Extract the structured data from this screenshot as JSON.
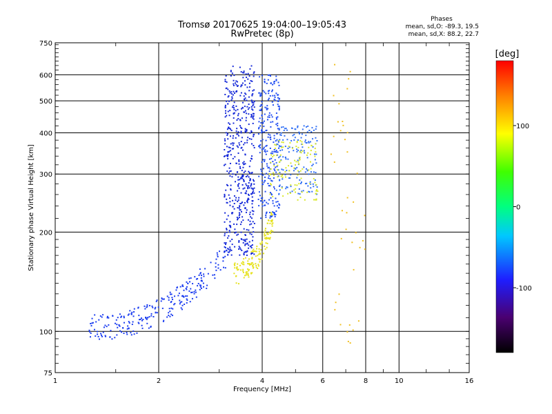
{
  "chart_data": {
    "type": "scatter",
    "title": "Tromsø 20170625 19:04:00–19:05:43",
    "subtitle": "RwPretec (8p)",
    "xlabel": "Frequency [MHz]",
    "ylabel": "Stationary phase Virtual Height [km]",
    "xscale": "log2",
    "yscale": "log",
    "xlim": [
      1,
      16
    ],
    "ylim": [
      75,
      750
    ],
    "grid": true,
    "x_ticks": [
      1,
      2,
      4,
      6,
      8,
      10,
      16
    ],
    "x_tick_labels": [
      "1",
      "2",
      "4",
      "6",
      "8",
      "10",
      "16"
    ],
    "x_gridlines": [
      2,
      4,
      6,
      8,
      10
    ],
    "y_ticks": [
      75,
      100,
      200,
      300,
      400,
      500,
      600,
      750
    ],
    "y_tick_labels": [
      "75",
      "100",
      "200",
      "300",
      "400",
      "500",
      "600",
      "750"
    ],
    "y_gridlines": [
      100,
      200,
      300,
      400,
      500,
      600
    ],
    "phases_box": {
      "title": "Phases",
      "line_o": "mean, sd,O: -89.3, 19.5",
      "line_x": "mean, sd,X:  88.2, 22.7"
    },
    "colorbar": {
      "label": "[deg]",
      "range": [
        -180,
        180
      ],
      "ticks": [
        100,
        0,
        -100
      ],
      "tick_labels": [
        "100",
        "0",
        "-100"
      ]
    },
    "clusters": [
      {
        "name": "low-frequency trace",
        "color": "#1a3cf0",
        "phase_deg": -100,
        "count": 260,
        "f": [
          1.25,
          3.2
        ],
        "h": [
          103,
          175
        ],
        "shape": "curve"
      },
      {
        "name": "F-layer column O",
        "color": "#1428d8",
        "phase_deg": -105,
        "count": 520,
        "f": [
          3.1,
          3.8
        ],
        "h": [
          170,
          640
        ],
        "shape": "column"
      },
      {
        "name": "F-layer column 2",
        "color": "#1f4cf2",
        "phase_deg": -95,
        "count": 260,
        "f": [
          3.9,
          4.5
        ],
        "h": [
          220,
          600
        ],
        "shape": "column"
      },
      {
        "name": "F-layer spread",
        "color": "#2f6ff5",
        "phase_deg": -85,
        "count": 160,
        "f": [
          4.4,
          5.8
        ],
        "h": [
          260,
          420
        ],
        "shape": "band"
      },
      {
        "name": "X-mode trace",
        "color": "#e6e21e",
        "phase_deg": 95,
        "count": 140,
        "f": [
          3.3,
          4.3
        ],
        "h": [
          150,
          220
        ],
        "shape": "curve"
      },
      {
        "name": "X-mode upper",
        "color": "#d8e82a",
        "phase_deg": 90,
        "count": 110,
        "f": [
          4.2,
          5.8
        ],
        "h": [
          250,
          380
        ],
        "shape": "band"
      },
      {
        "name": "sparse high-frequency echoes",
        "color": "#f0c020",
        "phase_deg": 110,
        "count": 40,
        "f": [
          6.2,
          8.0
        ],
        "h": [
          90,
          650
        ],
        "shape": "scatter"
      }
    ]
  }
}
